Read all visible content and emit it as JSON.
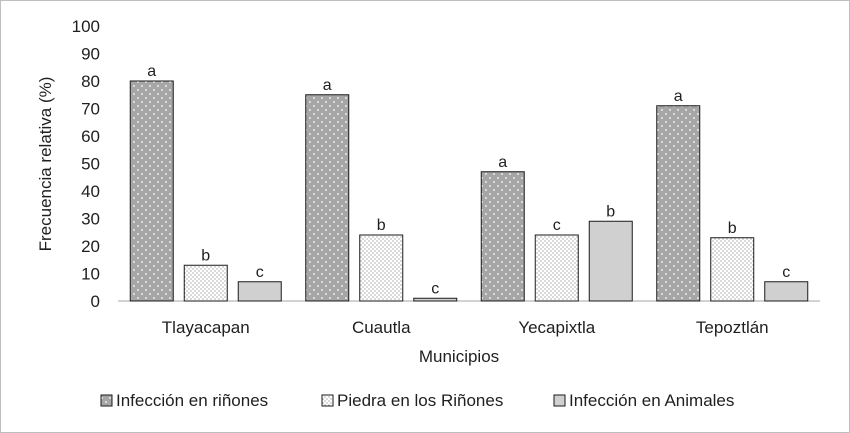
{
  "chart_data": {
    "type": "bar",
    "title": "",
    "xlabel": "Municipios",
    "ylabel": "Frecuencia relativa (%)",
    "ylim": [
      0,
      100
    ],
    "yticks": [
      0,
      10,
      20,
      30,
      40,
      50,
      60,
      70,
      80,
      90,
      100
    ],
    "categories": [
      "Tlayacapan",
      "Cuautla",
      "Yecapixtla",
      "Tepoztlán"
    ],
    "series": [
      {
        "name": "Infección en riñones",
        "values": [
          80,
          75,
          47,
          71
        ],
        "labels": [
          "a",
          "a",
          "a",
          "a"
        ],
        "fill_color": "#a6a6a6",
        "pattern": "dots"
      },
      {
        "name": "Piedra en los Riñones",
        "values": [
          13,
          24,
          24,
          23
        ],
        "labels": [
          "b",
          "b",
          "c",
          "b"
        ],
        "fill_color": "#ffffff",
        "pattern": "fine-dots"
      },
      {
        "name": "Infección en Animales",
        "values": [
          7,
          1,
          29,
          7
        ],
        "labels": [
          "c",
          "c",
          "b",
          "c"
        ],
        "fill_color": "#d0d0d0",
        "pattern": "solid"
      }
    ],
    "grid": false,
    "legend_position": "bottom"
  }
}
